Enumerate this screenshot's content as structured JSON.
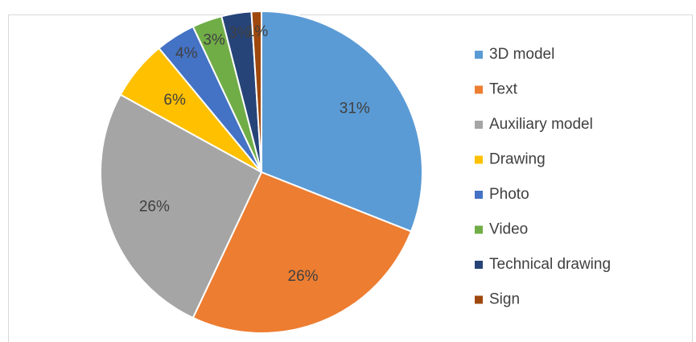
{
  "chart_data": {
    "type": "pie",
    "categories": [
      "3D model",
      "Text",
      "Auxiliary model",
      "Drawing",
      "Photo",
      "Video",
      "Technical drawing",
      "Sign"
    ],
    "values": [
      31,
      26,
      26,
      6,
      4,
      3,
      3,
      1
    ],
    "value_labels": [
      "31%",
      "26%",
      "26%",
      "6%",
      "4%",
      "3%",
      "3%",
      "1%"
    ],
    "colors": [
      "#5b9bd5",
      "#ed7d31",
      "#a5a5a5",
      "#ffc000",
      "#4472c4",
      "#70ad47",
      "#264478",
      "#9e480e"
    ],
    "legend": "right"
  }
}
